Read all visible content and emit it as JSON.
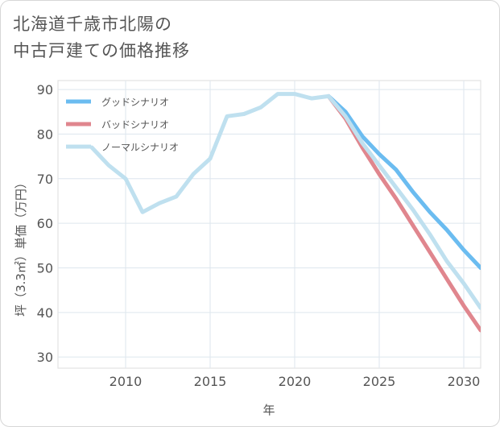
{
  "title_lines": [
    "北海道千歳市北陽の",
    "中古戸建ての価格推移"
  ],
  "chart_data": {
    "type": "line",
    "title": "北海道千歳市北陽の中古戸建ての価格推移",
    "xlabel": "年",
    "ylabel": "坪（3.3㎡）単価（万円）",
    "xlim": [
      2006,
      2031
    ],
    "ylim": [
      27.5,
      92
    ],
    "xticks": [
      2010,
      2015,
      2020,
      2025,
      2030
    ],
    "yticks": [
      30,
      40,
      50,
      60,
      70,
      80,
      90
    ],
    "grid": true,
    "legend_position": "top-left",
    "series": [
      {
        "name": "グッドシナリオ",
        "color": "#6bbcf0",
        "x": [
          2022,
          2023,
          2024,
          2025,
          2026,
          2027,
          2028,
          2029,
          2030,
          2031
        ],
        "values": [
          88.5,
          85,
          79.5,
          75.5,
          72,
          67,
          62.5,
          58.5,
          54,
          50
        ]
      },
      {
        "name": "バッドシナリオ",
        "color": "#e0868e",
        "x": [
          2022,
          2023,
          2024,
          2025,
          2026,
          2027,
          2028,
          2029,
          2030,
          2031
        ],
        "values": [
          88.5,
          83.5,
          77,
          71,
          65.5,
          59.5,
          53.5,
          47.5,
          41.5,
          36
        ]
      },
      {
        "name": "ノーマルシナリオ",
        "color": "#bfe0ef",
        "x": [
          2008,
          2009,
          2010,
          2011,
          2012,
          2013,
          2014,
          2015,
          2016,
          2017,
          2018,
          2019,
          2020,
          2021,
          2022,
          2023,
          2024,
          2025,
          2026,
          2027,
          2028,
          2029,
          2030,
          2031
        ],
        "values": [
          77,
          73,
          70,
          62.5,
          64.5,
          66,
          71,
          74.5,
          84,
          84.5,
          86,
          89,
          89,
          88,
          88.5,
          84,
          78,
          73,
          68,
          63,
          57.5,
          51.5,
          46.5,
          41
        ]
      }
    ]
  }
}
